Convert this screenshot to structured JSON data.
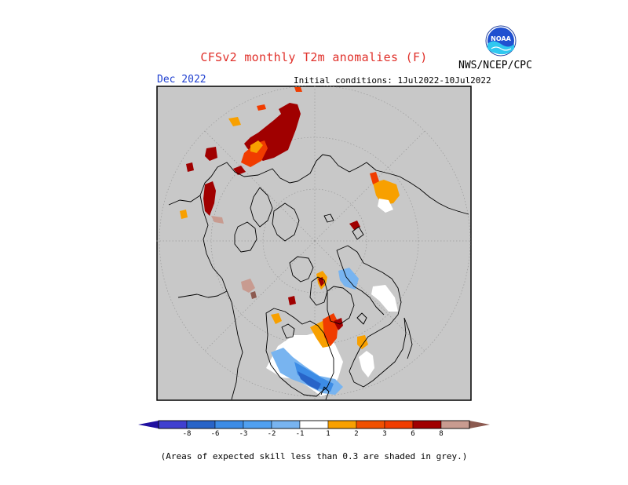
{
  "title": "CFSv2 monthly T2m anomalies (F)",
  "agency": "NWS/NCEP/CPC",
  "logo_text": "NOAA",
  "forecast_month": "Dec 2022",
  "initial_conditions": "Initial conditions: 1Jul2022-10Jul2022",
  "note": "(Areas of expected skill less than 0.3 are shaded in grey.)",
  "colors": {
    "grey": "#c8c8c8",
    "white": "#ffffff",
    "lblue": "#78b4f0",
    "mblue": "#3c8ce6",
    "dblue": "#2864c8",
    "orange": "#f8a000",
    "redorange": "#f03c00",
    "darkred": "#a00000",
    "tan": "#c89b90",
    "brown": "#8c5a50",
    "vdblue": "#2010a0"
  },
  "colorbar": {
    "ticks": [
      "-8",
      "-6",
      "-3",
      "-2",
      "-1",
      "1",
      "2",
      "3",
      "6",
      "8"
    ],
    "colors": [
      "#4040d0",
      "#2864c8",
      "#3c8ce6",
      "#50a0f0",
      "#78b4f0",
      "#ffffff",
      "#f8a000",
      "#f05000",
      "#f03c00",
      "#a00000",
      "#c89b90"
    ],
    "low_end_color": "#2010a0",
    "high_end_color": "#8c5a50"
  }
}
